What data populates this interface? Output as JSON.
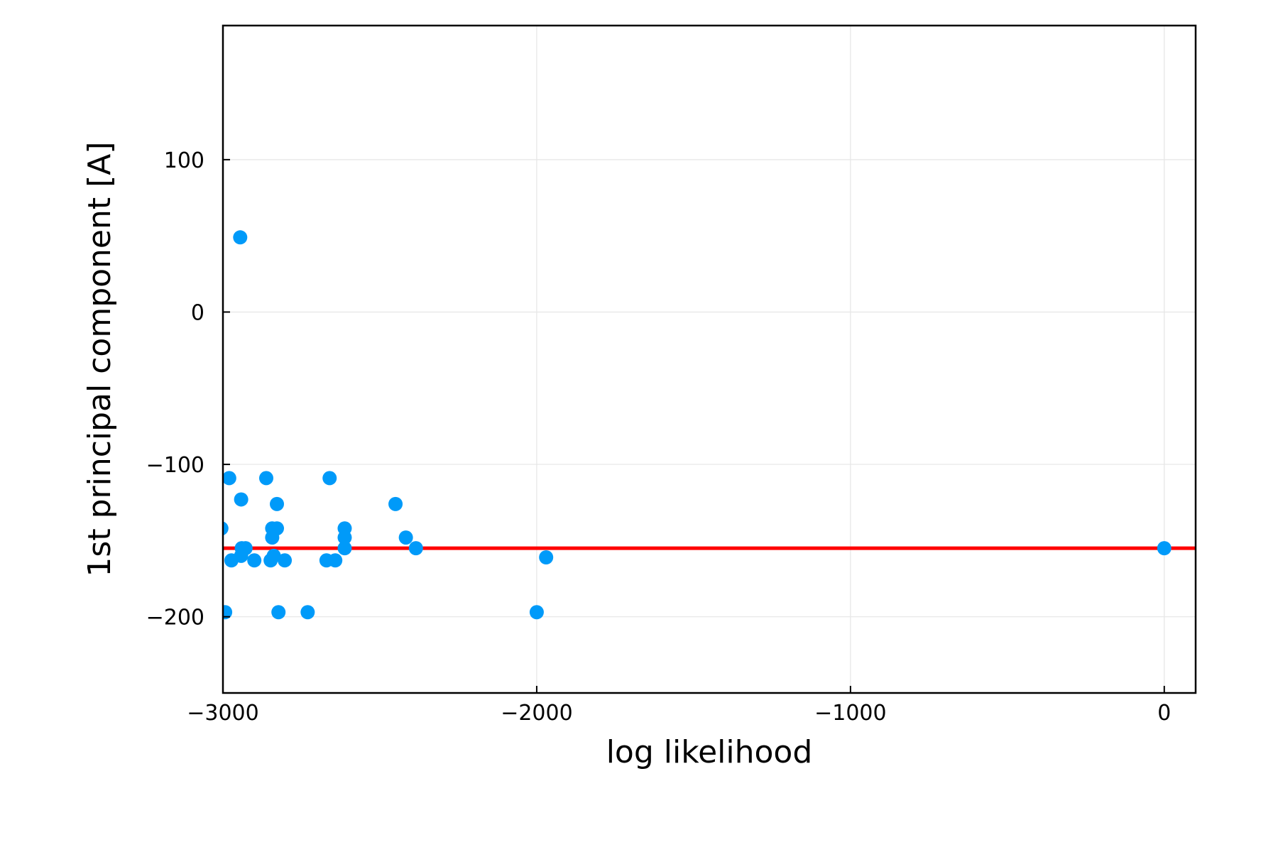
{
  "chart_data": {
    "type": "scatter",
    "title": "",
    "xlabel": "log likelihood",
    "ylabel": "1st principal component [A]",
    "xlim": [
      -3000,
      100
    ],
    "ylim": [
      -250,
      188
    ],
    "xticks": [
      -3000,
      -2000,
      -1000,
      0
    ],
    "xtick_labels": [
      "−3000",
      "−2000",
      "−1000",
      "0"
    ],
    "yticks": [
      -200,
      -100,
      0,
      100
    ],
    "ytick_labels": [
      "−200",
      "−100",
      "0",
      "100"
    ],
    "grid": true,
    "legend": "none",
    "series": [
      {
        "type": "scatter",
        "color": "#009af9",
        "points": [
          [
            -2945,
            49
          ],
          [
            -2980,
            -109
          ],
          [
            -2862,
            -109
          ],
          [
            -2660,
            -109
          ],
          [
            -2942,
            -123
          ],
          [
            -2828,
            -126
          ],
          [
            -2450,
            -126
          ],
          [
            -2828,
            -142
          ],
          [
            -2843,
            -142
          ],
          [
            -2612,
            -142
          ],
          [
            -2843,
            -148
          ],
          [
            -2612,
            -148
          ],
          [
            -2417,
            -148
          ],
          [
            -3005,
            -142
          ],
          [
            -2940,
            -155
          ],
          [
            -2928,
            -155
          ],
          [
            -2612,
            -155
          ],
          [
            -2385,
            -155
          ],
          [
            0,
            -155
          ],
          [
            -2942,
            -160
          ],
          [
            -2838,
            -160
          ],
          [
            -1970,
            -161
          ],
          [
            -2973,
            -163
          ],
          [
            -2900,
            -163
          ],
          [
            -2848,
            -163
          ],
          [
            -2803,
            -163
          ],
          [
            -2670,
            -163
          ],
          [
            -2642,
            -163
          ],
          [
            -2993,
            -197
          ],
          [
            -2823,
            -197
          ],
          [
            -2730,
            -197
          ],
          [
            -2000,
            -197
          ]
        ]
      },
      {
        "type": "hline",
        "color": "#ff0000",
        "y": -155
      }
    ]
  }
}
